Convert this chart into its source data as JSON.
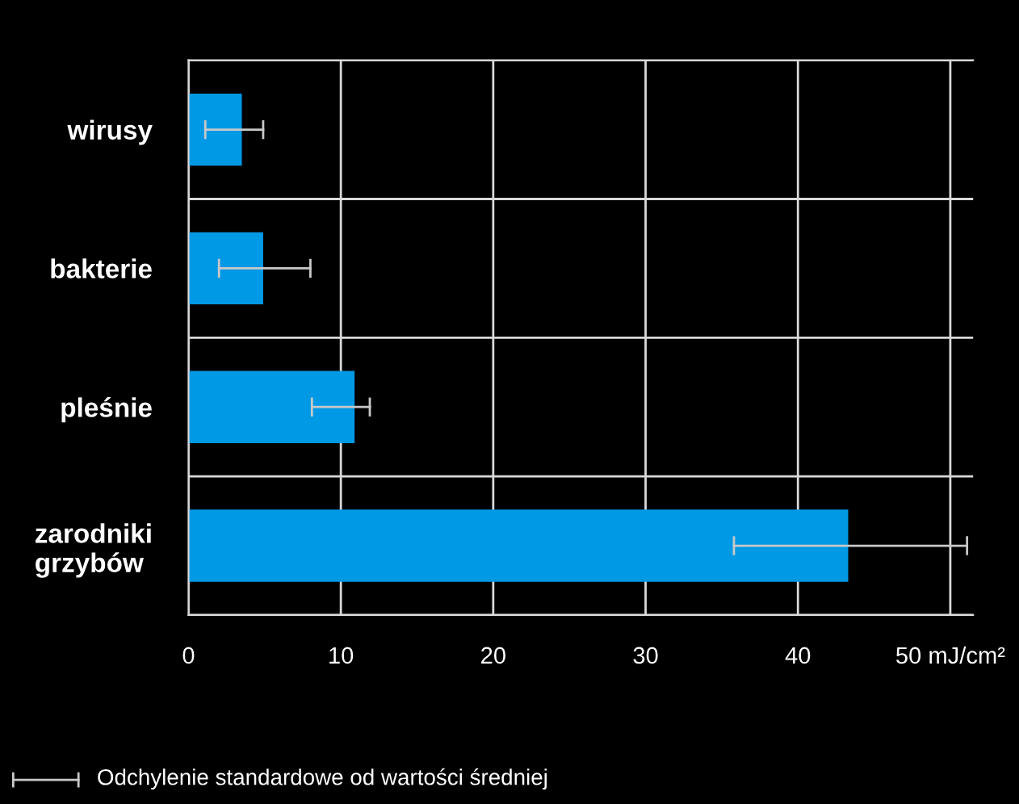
{
  "chart_data": {
    "type": "bar",
    "orientation": "horizontal",
    "categories": [
      "wirusy",
      "bakterie",
      "pleśnie",
      "zarodniki\ngrzybów"
    ],
    "values": [
      3.5,
      4.9,
      10.9,
      43.3
    ],
    "errors": [
      [
        1.1,
        4.9
      ],
      [
        2.0,
        8.0
      ],
      [
        8.1,
        11.9
      ],
      [
        35.8,
        51.1
      ]
    ],
    "color": "#0099e6",
    "xlim": [
      0,
      51.5
    ],
    "xticks": [
      0,
      10,
      20,
      30,
      40,
      {
        "value": 50,
        "label": "50 mJ/cm²"
      }
    ],
    "grid": true,
    "annotations": [
      "Odchylenie standardowe od wartości średniej"
    ]
  }
}
